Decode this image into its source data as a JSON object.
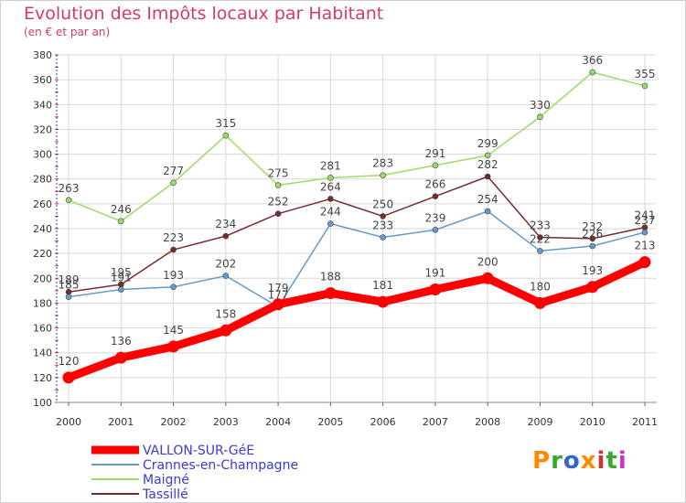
{
  "chart_data": {
    "type": "line",
    "title": "Evolution des Impôts locaux par Habitant",
    "subtitle": "(en € et par an)",
    "x": [
      "2000",
      "2001",
      "2002",
      "2003",
      "2004",
      "2005",
      "2006",
      "2007",
      "2008",
      "2009",
      "2010",
      "2011"
    ],
    "ylim": [
      100,
      380
    ],
    "yticks": [
      100,
      120,
      140,
      160,
      180,
      200,
      220,
      240,
      260,
      280,
      300,
      320,
      340,
      360,
      380
    ],
    "grid": true,
    "legend_position": "bottom-left",
    "series": [
      {
        "name": "VALLON-SUR-GéE",
        "color": "#ff0000",
        "values": [
          120,
          136,
          145,
          158,
          179,
          188,
          181,
          191,
          200,
          180,
          193,
          213
        ]
      },
      {
        "name": "Crannes-en-Champagne",
        "color": "#6699cc",
        "values": [
          185,
          191,
          193,
          202,
          177,
          244,
          233,
          239,
          254,
          222,
          226,
          237
        ]
      },
      {
        "name": "Maigné",
        "color": "#99dd66",
        "values": [
          263,
          246,
          277,
          315,
          275,
          281,
          283,
          291,
          299,
          330,
          366,
          355
        ]
      },
      {
        "name": "Tassillé",
        "color": "#7a2a2a",
        "values": [
          189,
          195,
          223,
          234,
          252,
          264,
          250,
          266,
          282,
          233,
          232,
          241
        ]
      }
    ]
  },
  "logo": {
    "letters": [
      "P",
      "r",
      "o",
      "x",
      "i",
      "t",
      "i"
    ],
    "colors": [
      "#ff8800",
      "#33aa33",
      "#3366cc",
      "#ff8800",
      "#cc3333",
      "#33aa33",
      "#cc33cc"
    ]
  }
}
